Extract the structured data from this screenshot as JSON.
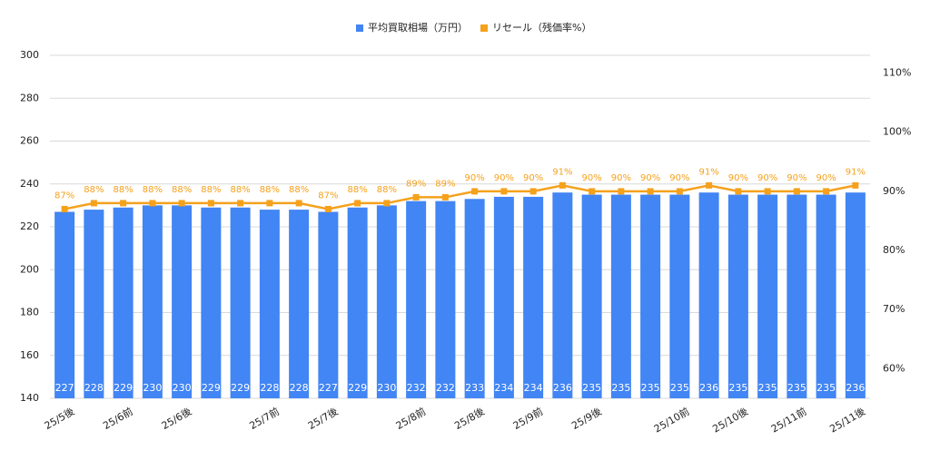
{
  "chart_data": {
    "type": "combo",
    "legend": "top",
    "grid": true,
    "categories": [
      "25/5後",
      null,
      "25/6前",
      null,
      "25/6後",
      null,
      null,
      "25/7前",
      null,
      "25/7後",
      null,
      null,
      "25/8前",
      null,
      "25/8後",
      null,
      "25/9前",
      null,
      "25/9後",
      null,
      null,
      "25/10前",
      null,
      "25/10後",
      null,
      "25/11前",
      null,
      "25/11後"
    ],
    "ylim": [
      140,
      300
    ],
    "yticks": [
      140,
      160,
      180,
      200,
      220,
      240,
      260,
      280,
      300
    ],
    "y2lim": [
      55,
      113
    ],
    "y2ticks": [
      {
        "value": 60,
        "label": "60%"
      },
      {
        "value": 70,
        "label": "70%"
      },
      {
        "value": 80,
        "label": "80%"
      },
      {
        "value": 90,
        "label": "90%"
      },
      {
        "value": 100,
        "label": "100%"
      },
      {
        "value": 110,
        "label": "110%"
      }
    ],
    "series": [
      {
        "name": "平均買取相場（万円）",
        "type": "bar",
        "color": "#4285f4",
        "values": [
          227,
          228,
          229,
          230,
          230,
          229,
          229,
          228,
          228,
          227,
          229,
          230,
          232,
          232,
          233,
          234,
          234,
          236,
          235,
          235,
          235,
          235,
          236,
          235,
          235,
          235,
          235,
          236
        ]
      },
      {
        "name": "リセール（残価率%）",
        "type": "line",
        "axis": "y2",
        "color": "#f5a11c",
        "values": [
          87,
          88,
          88,
          88,
          88,
          88,
          88,
          88,
          88,
          87,
          88,
          88,
          89,
          89,
          90,
          90,
          90,
          91,
          90,
          90,
          90,
          90,
          91,
          90,
          90,
          90,
          90,
          91
        ],
        "value_labels": [
          "87%",
          "88%",
          "88%",
          "88%",
          "88%",
          "88%",
          "88%",
          "88%",
          "88%",
          "87%",
          "88%",
          "88%",
          "89%",
          "89%",
          "90%",
          "90%",
          "90%",
          "91%",
          "90%",
          "90%",
          "90%",
          "90%",
          "91%",
          "90%",
          "90%",
          "90%",
          "90%",
          "91%"
        ]
      }
    ]
  }
}
